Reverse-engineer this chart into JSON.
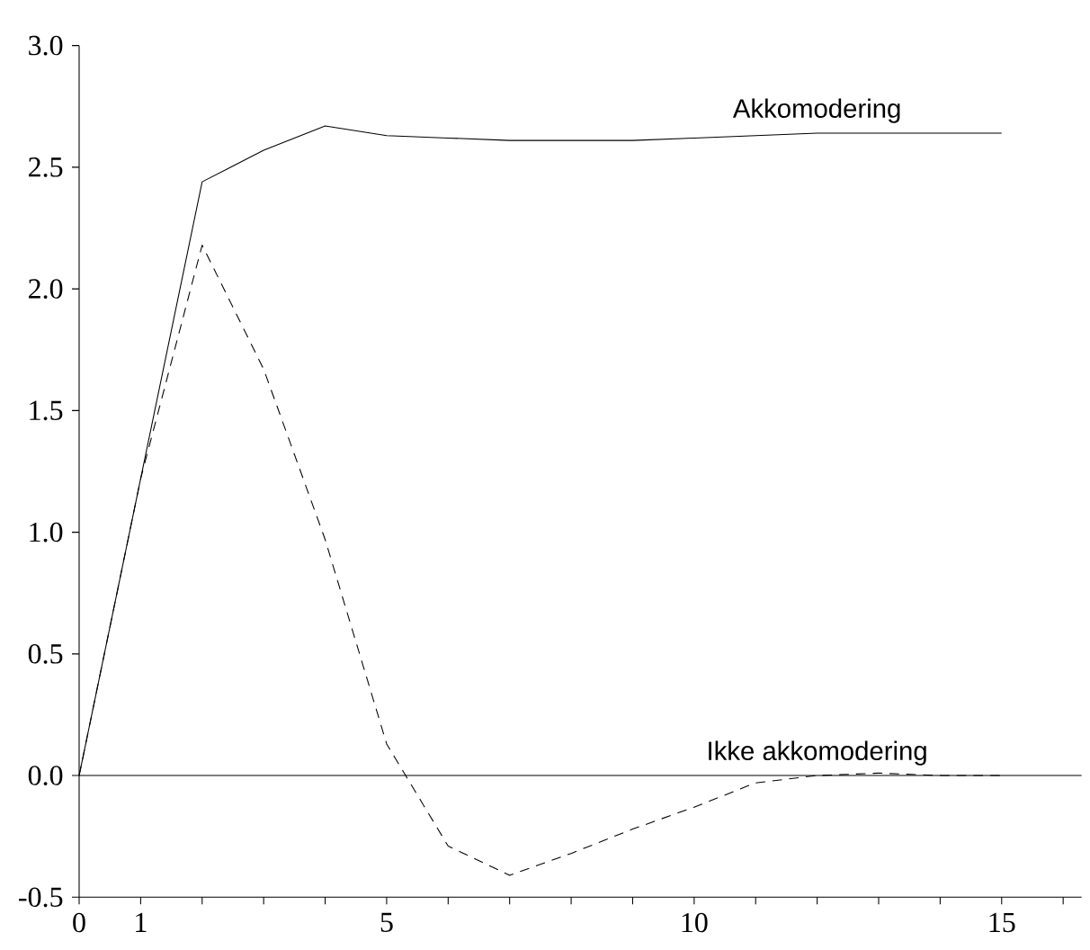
{
  "chart_data": {
    "type": "line",
    "x": [
      0,
      1,
      2,
      3,
      4,
      5,
      6,
      7,
      8,
      9,
      10,
      11,
      12,
      13,
      14,
      15
    ],
    "series": [
      {
        "name": "Akkomodering",
        "color": "#000000",
        "line_style": "solid",
        "values": [
          0,
          1.22,
          2.44,
          2.57,
          2.67,
          2.63,
          2.62,
          2.61,
          2.61,
          2.61,
          2.62,
          2.63,
          2.64,
          2.64,
          2.64,
          2.64
        ]
      },
      {
        "name": "Ikke akkomodering",
        "color": "#000000",
        "line_style": "dashed",
        "values": [
          0,
          1.22,
          2.18,
          1.67,
          0.97,
          0.13,
          -0.29,
          -0.41,
          -0.32,
          -0.22,
          -0.13,
          -0.03,
          0.0,
          0.01,
          0.0,
          0.0
        ]
      }
    ],
    "xlim": [
      0,
      16.3
    ],
    "xticks": [
      0,
      1,
      {
        "value": 2,
        "label": null
      },
      {
        "value": 3,
        "label": null
      },
      {
        "value": 4,
        "label": null
      },
      5,
      {
        "value": 6,
        "label": null
      },
      {
        "value": 7,
        "label": null
      },
      {
        "value": 8,
        "label": null
      },
      {
        "value": 9,
        "label": null
      },
      10,
      {
        "value": 11,
        "label": null
      },
      {
        "value": 12,
        "label": null
      },
      {
        "value": 13,
        "label": null
      },
      {
        "value": 14,
        "label": null
      },
      15,
      {
        "value": 16,
        "label": null
      }
    ],
    "ylim": [
      -0.5,
      3.0
    ],
    "yticks": [
      {
        "value": -0.5,
        "label": "-0.5"
      },
      {
        "value": 0,
        "label": "0.0"
      },
      {
        "value": 0.5,
        "label": "0.5"
      },
      {
        "value": 1,
        "label": "1.0"
      },
      {
        "value": 1.5,
        "label": "1.5"
      },
      {
        "value": 2,
        "label": "2.0"
      },
      {
        "value": 2.5,
        "label": "2.5"
      },
      {
        "value": 3,
        "label": "3.0"
      }
    ],
    "ref_lines": [
      {
        "axis": "y",
        "value": 0,
        "color": "#000000",
        "line_style": "solid"
      }
    ],
    "grid": false,
    "legend": false,
    "marker": "none"
  }
}
